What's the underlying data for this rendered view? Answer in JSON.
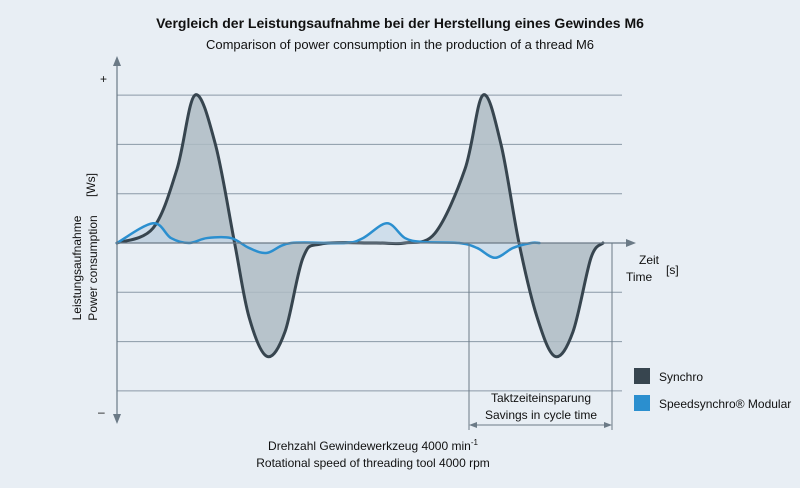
{
  "title": "Vergleich der Leistungsaufnahme bei der Herstellung eines Gewindes M6",
  "subtitle": "Comparison of power consumption in the production of a thread M6",
  "y_plus": "+",
  "y_minus": "–",
  "ylabel_de": "Leistungsaufnahme",
  "ylabel_en": "Power consumption",
  "y_unit": "[Ws]",
  "xlabel_de": "Zeit",
  "xlabel_en": "Time",
  "x_unit": "[s]",
  "savings_de": "Taktzeiteinsparung",
  "savings_en": "Savings in cycle time",
  "bottom_de": "Drehzahl Gewindewerkzeug 4000 min",
  "bottom_sup": "-1",
  "bottom_en": "Rotational speed of threading tool 4000 rpm",
  "colors": {
    "synchro": "#37454f",
    "speedsynchro": "#2b8fcf",
    "synchro_fill": "#aebbc3",
    "speed_fill": "#c7d8e8",
    "grid": "#8a99a6",
    "axis": "#6b7a86"
  },
  "legend": [
    {
      "label": "Synchro",
      "color": "#37454f"
    },
    {
      "label": "Speedsynchro® Modular",
      "color": "#2b8fcf"
    }
  ],
  "chart_data": {
    "type": "line",
    "title": "Vergleich der Leistungsaufnahme bei der Herstellung eines Gewindes M6",
    "subtitle": "Comparison of power consumption in the production of a thread M6",
    "xlabel": "Zeit / Time [s]",
    "ylabel": "Leistungsaufnahme / Power consumption [Ws]",
    "grid": true,
    "legend_position": "bottom-right",
    "series": [
      {
        "name": "Synchro",
        "points": [
          [
            0,
            0
          ],
          [
            30,
            0.3
          ],
          [
            50,
            1.5
          ],
          [
            65,
            3
          ],
          [
            82,
            2
          ],
          [
            98,
            0
          ],
          [
            110,
            -1.5
          ],
          [
            125,
            -2.3
          ],
          [
            140,
            -1.8
          ],
          [
            155,
            -0.3
          ],
          [
            170,
            -0.02
          ],
          [
            215,
            0
          ],
          [
            240,
            0
          ],
          [
            265,
            0.2
          ],
          [
            290,
            1.5
          ],
          [
            305,
            3
          ],
          [
            320,
            2
          ],
          [
            335,
            0
          ],
          [
            350,
            -1.5
          ],
          [
            365,
            -2.3
          ],
          [
            380,
            -1.8
          ],
          [
            395,
            -0.3
          ],
          [
            405,
            0
          ]
        ]
      },
      {
        "name": "Speedsynchro® Modular",
        "points": [
          [
            0,
            0
          ],
          [
            30,
            0.4
          ],
          [
            45,
            0.1
          ],
          [
            60,
            0
          ],
          [
            75,
            0.1
          ],
          [
            95,
            0.1
          ],
          [
            110,
            -0.1
          ],
          [
            125,
            -0.2
          ],
          [
            145,
            0
          ],
          [
            190,
            0
          ],
          [
            205,
            0.1
          ],
          [
            225,
            0.4
          ],
          [
            240,
            0.1
          ],
          [
            255,
            0.02
          ],
          [
            285,
            0
          ],
          [
            300,
            -0.1
          ],
          [
            315,
            -0.3
          ],
          [
            330,
            -0.1
          ],
          [
            345,
            0
          ],
          [
            352,
            0
          ]
        ]
      }
    ]
  }
}
